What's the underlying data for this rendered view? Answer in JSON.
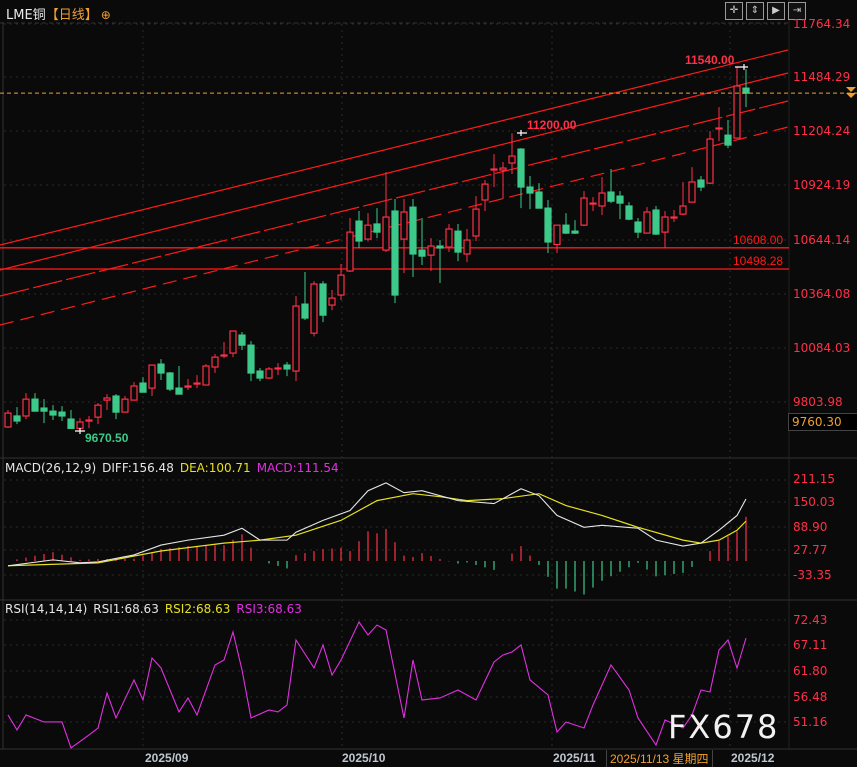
{
  "header": {
    "symbol": "LME铜",
    "period": "【日线】",
    "add_icon": "circle-plus-icon"
  },
  "toolbar": {
    "icons": [
      "crosshair-icon",
      "fit-vertical-icon",
      "play-range-icon",
      "scroll-right-icon"
    ]
  },
  "colors": {
    "up": "#ff3048",
    "down": "#3cc98a",
    "diff": "#e6e6e6",
    "dea": "#e6e020",
    "rsi": "#e030e0",
    "current_price": "#f0a030",
    "trendline": "#ff1a1a"
  },
  "price_axis": {
    "ticks": [
      "11764.34",
      "11484.29",
      "11204.24",
      "10924.19",
      "10644.14",
      "10364.08",
      "10084.03",
      "9803.98"
    ],
    "crosshair_price": "9760.30"
  },
  "annotations": {
    "high_1": "11540.00",
    "high_2": "11200.00",
    "low_1": "9670.50",
    "level_1": "10608.00",
    "level_2": "10498.28"
  },
  "levels": [
    10608.0,
    10498.28
  ],
  "current_price": 11407,
  "macd": {
    "label": "MACD(26,12,9)",
    "diff_label": "DIFF:156.48",
    "dea_label": "DEA:100.71",
    "macd_label": "MACD:111.54",
    "ticks": [
      "211.15",
      "150.03",
      "88.90",
      "27.77",
      "-33.35"
    ],
    "diff": [
      [
        0,
        -12.2
      ],
      [
        5,
        2.8
      ],
      [
        8,
        -4.7
      ],
      [
        10,
        -2.2
      ],
      [
        14,
        15.3
      ],
      [
        17,
        40.2
      ],
      [
        20,
        52.7
      ],
      [
        24,
        65.2
      ],
      [
        26,
        82.7
      ],
      [
        28,
        52.7
      ],
      [
        31,
        52.7
      ],
      [
        32,
        72.7
      ],
      [
        35,
        102.6
      ],
      [
        38,
        127.6
      ],
      [
        40,
        177.5
      ],
      [
        42,
        197.4
      ],
      [
        44,
        172.5
      ],
      [
        46,
        177.5
      ],
      [
        50,
        152.5
      ],
      [
        54,
        145.0
      ],
      [
        57,
        182.5
      ],
      [
        59,
        165.0
      ],
      [
        61,
        115.1
      ],
      [
        64,
        85.2
      ],
      [
        66,
        90.1
      ],
      [
        70,
        82.7
      ],
      [
        72,
        52.7
      ],
      [
        75,
        37.7
      ],
      [
        77,
        45.2
      ],
      [
        79,
        77.7
      ],
      [
        81,
        115.0
      ],
      [
        82,
        156.48
      ]
    ],
    "dea": [
      [
        0,
        -12.0
      ],
      [
        10,
        -4.7
      ],
      [
        17,
        25.2
      ],
      [
        24,
        45.2
      ],
      [
        28,
        52.7
      ],
      [
        32,
        65.2
      ],
      [
        37,
        102.6
      ],
      [
        41,
        152.5
      ],
      [
        45,
        170.0
      ],
      [
        48,
        162.5
      ],
      [
        51,
        152.5
      ],
      [
        55,
        157.5
      ],
      [
        59,
        170.0
      ],
      [
        62,
        140.0
      ],
      [
        66,
        115.0
      ],
      [
        70,
        85.0
      ],
      [
        75,
        52.7
      ],
      [
        77,
        45.2
      ],
      [
        79,
        52.7
      ],
      [
        81,
        77.7
      ],
      [
        82,
        100.71
      ]
    ]
  },
  "rsi": {
    "label": "RSI(14,14,14)",
    "rsi1_label": "RSI1:68.63",
    "rsi2_label": "RSI2:68.63",
    "rsi3_label": "RSI3:68.63",
    "ticks": [
      "72.43",
      "67.11",
      "61.80",
      "56.48",
      "51.16"
    ],
    "values": [
      [
        0,
        52.54
      ],
      [
        1,
        49.4
      ],
      [
        2,
        52.54
      ],
      [
        4,
        51.07
      ],
      [
        6,
        51.07
      ],
      [
        7,
        45.63
      ],
      [
        9,
        48.35
      ],
      [
        10,
        49.81
      ],
      [
        11,
        57.14
      ],
      [
        12,
        51.91
      ],
      [
        14,
        59.87
      ],
      [
        15,
        55.68
      ],
      [
        16,
        64.47
      ],
      [
        17,
        62.38
      ],
      [
        19,
        53.17
      ],
      [
        20,
        56.1
      ],
      [
        21,
        52.54
      ],
      [
        23,
        63.01
      ],
      [
        24,
        64.05
      ],
      [
        25,
        69.92
      ],
      [
        26,
        61.96
      ],
      [
        27,
        51.91
      ],
      [
        29,
        53.58
      ],
      [
        30,
        53.17
      ],
      [
        31,
        54.63
      ],
      [
        32,
        68.24
      ],
      [
        34,
        62.38
      ],
      [
        35,
        67.2
      ],
      [
        36,
        60.91
      ],
      [
        37,
        64.05
      ],
      [
        39,
        72.01
      ],
      [
        40,
        69.29
      ],
      [
        41,
        71.38
      ],
      [
        42,
        70.34
      ],
      [
        44,
        51.91
      ],
      [
        45,
        64.05
      ],
      [
        46,
        55.68
      ],
      [
        48,
        56.1
      ],
      [
        50,
        57.77
      ],
      [
        52,
        55.68
      ],
      [
        54,
        63.64
      ],
      [
        55,
        65.1
      ],
      [
        56,
        65.73
      ],
      [
        57,
        67.2
      ],
      [
        58,
        59.87
      ],
      [
        60,
        56.73
      ],
      [
        61,
        48.98
      ],
      [
        62,
        51.07
      ],
      [
        64,
        49.81
      ],
      [
        65,
        54.63
      ],
      [
        67,
        63.01
      ],
      [
        69,
        57.77
      ],
      [
        70,
        51.91
      ],
      [
        72,
        46.25
      ],
      [
        73,
        51.49
      ],
      [
        75,
        49.81
      ],
      [
        76,
        52.54
      ],
      [
        77,
        57.77
      ],
      [
        78,
        57.35
      ],
      [
        79,
        66.15
      ],
      [
        80,
        68.24
      ],
      [
        81,
        62.38
      ],
      [
        82,
        68.63
      ]
    ]
  },
  "chart_data": {
    "type": "candlestick",
    "ohlc_order": [
      "open",
      "high",
      "low",
      "close"
    ],
    "ylim": [
      9740,
      11800
    ],
    "x_ticks": [
      "2025/09",
      "2025/10",
      "2025/11",
      "2025/12"
    ],
    "crosshair_date": "2025/11/13 星期四",
    "candles": [
      [
        9682,
        9770,
        9677,
        9754
      ],
      [
        9739,
        9785,
        9697,
        9713
      ],
      [
        9739,
        9857,
        9723,
        9826
      ],
      [
        9826,
        9857,
        9764,
        9764
      ],
      [
        9780,
        9826,
        9702,
        9764
      ],
      [
        9764,
        9795,
        9718,
        9744
      ],
      [
        9759,
        9790,
        9713,
        9739
      ],
      [
        9723,
        9770,
        9675,
        9675
      ],
      [
        9675,
        9728,
        9670.5,
        9708
      ],
      [
        9713,
        9739,
        9676,
        9718
      ],
      [
        9733,
        9806,
        9697,
        9795
      ],
      [
        9821,
        9852,
        9770,
        9832
      ],
      [
        9842,
        9852,
        9723,
        9759
      ],
      [
        9759,
        9842,
        9759,
        9826
      ],
      [
        9821,
        9914,
        9821,
        9894
      ],
      [
        9909,
        9940,
        9862,
        9862
      ],
      [
        9883,
        10002,
        9842,
        10002
      ],
      [
        10007,
        10033,
        9925,
        9961
      ],
      [
        9961,
        9966,
        9868,
        9878
      ],
      [
        9883,
        9997,
        9852,
        9852
      ],
      [
        9888,
        9930,
        9873,
        9894
      ],
      [
        9909,
        9950,
        9883,
        9909
      ],
      [
        9899,
        10007,
        9899,
        9997
      ],
      [
        9992,
        10059,
        9961,
        10043
      ],
      [
        10049,
        10121,
        10038,
        10054
      ],
      [
        10064,
        10178,
        10043,
        10178
      ],
      [
        10157,
        10173,
        10080,
        10105
      ],
      [
        10105,
        10126,
        9919,
        9961
      ],
      [
        9971,
        9987,
        9919,
        9935
      ],
      [
        9935,
        9992,
        9930,
        9982
      ],
      [
        9987,
        10012,
        9950,
        9987
      ],
      [
        10002,
        10018,
        9945,
        9982
      ],
      [
        9971,
        10359,
        9919,
        10307
      ],
      [
        10317,
        10483,
        10235,
        10245
      ],
      [
        10167,
        10436,
        10150,
        10421
      ],
      [
        10421,
        10436,
        10224,
        10260
      ],
      [
        10312,
        10390,
        10286,
        10348
      ],
      [
        10364,
        10524,
        10338,
        10467
      ],
      [
        10488,
        10762,
        10483,
        10689
      ],
      [
        10746,
        10798,
        10607,
        10643
      ],
      [
        10653,
        10787,
        10640,
        10725
      ],
      [
        10731,
        10813,
        10658,
        10689
      ],
      [
        10596,
        10999,
        10586,
        10767
      ],
      [
        10798,
        10860,
        10322,
        10364
      ],
      [
        10653,
        10860,
        10477,
        10793
      ],
      [
        10818,
        10860,
        10457,
        10576
      ],
      [
        10596,
        10762,
        10519,
        10565
      ],
      [
        10570,
        10658,
        10488,
        10617
      ],
      [
        10617,
        10648,
        10426,
        10607
      ],
      [
        10612,
        10731,
        10586,
        10705
      ],
      [
        10694,
        10731,
        10539,
        10586
      ],
      [
        10576,
        10705,
        10534,
        10648
      ],
      [
        10669,
        10875,
        10643,
        10808
      ],
      [
        10855,
        10958,
        10798,
        10937
      ],
      [
        11010,
        11092,
        10922,
        11015
      ],
      [
        11010,
        11051,
        10860,
        11020
      ],
      [
        11046,
        11200,
        10989,
        11082
      ],
      [
        11118,
        11123,
        10813,
        10922
      ],
      [
        10922,
        10979,
        10808,
        10891
      ],
      [
        10896,
        10942,
        10813,
        10813
      ],
      [
        10813,
        10855,
        10581,
        10638
      ],
      [
        10625,
        10725,
        10581,
        10725
      ],
      [
        10725,
        10787,
        10679,
        10684
      ],
      [
        10694,
        10751,
        10679,
        10684
      ],
      [
        10725,
        10901,
        10720,
        10865
      ],
      [
        10839,
        10870,
        10798,
        10839
      ],
      [
        10824,
        10973,
        10777,
        10891
      ],
      [
        10896,
        11015,
        10839,
        10849
      ],
      [
        10875,
        10901,
        10756,
        10839
      ],
      [
        10824,
        10844,
        10751,
        10756
      ],
      [
        10741,
        10762,
        10658,
        10689
      ],
      [
        10684,
        10818,
        10684,
        10793
      ],
      [
        10803,
        10824,
        10674,
        10679
      ],
      [
        10689,
        10798,
        10608,
        10767
      ],
      [
        10767,
        10803,
        10741,
        10767
      ],
      [
        10782,
        10948,
        10777,
        10824
      ],
      [
        10844,
        11025,
        10844,
        10948
      ],
      [
        10958,
        10979,
        10901,
        10922
      ],
      [
        10942,
        11211,
        10937,
        11170
      ],
      [
        11227,
        11335,
        11159,
        11227
      ],
      [
        11190,
        11268,
        11123,
        11139
      ],
      [
        11175,
        11540,
        11175,
        11444
      ],
      [
        11433,
        11531,
        11335,
        11407
      ]
    ]
  },
  "watermark": "FX678"
}
